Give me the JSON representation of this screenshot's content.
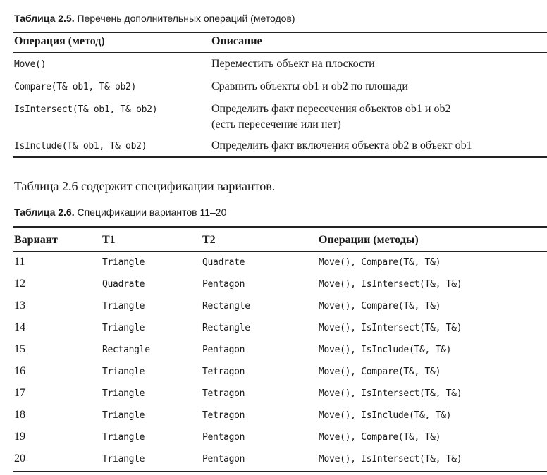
{
  "table1": {
    "caption_label": "Таблица 2.5.",
    "caption_text": " Перечень дополнительных операций (методов)",
    "headers": [
      "Операция (метод)",
      "Описание"
    ],
    "rows": [
      {
        "op": "Move()",
        "desc": "Переместить объект на плоскости"
      },
      {
        "op": "Compare(T& ob1, T& ob2)",
        "desc": "Сравнить объекты ob1 и ob2 по площади"
      },
      {
        "op": "IsIntersect(T& ob1, T& ob2)",
        "desc": "Определить факт пересечения объектов ob1 и ob2",
        "desc2": "(есть пересечение или нет)"
      },
      {
        "op": "IsInclude(T& ob1, T& ob2)",
        "desc": "Определить факт включения объекта ob2 в объект ob1"
      }
    ]
  },
  "paragraph": "Таблица 2.6 содержит спецификации вариантов.",
  "table2": {
    "caption_label": "Таблица 2.6.",
    "caption_text": " Спецификации вариантов 11–20",
    "headers": [
      "Вариант",
      "T1",
      "T2",
      "Операции (методы)"
    ],
    "rows": [
      [
        "11",
        "Triangle",
        "Quadrate",
        "Move(), Compare(T&, T&)"
      ],
      [
        "12",
        "Quadrate",
        "Pentagon",
        "Move(), IsIntersect(T&, T&)"
      ],
      [
        "13",
        "Triangle",
        "Rectangle",
        "Move(), Compare(T&, T&)"
      ],
      [
        "14",
        "Triangle",
        "Rectangle",
        "Move(), IsIntersect(T&, T&)"
      ],
      [
        "15",
        "Rectangle",
        "Pentagon",
        "Move(), IsInclude(T&, T&)"
      ],
      [
        "16",
        "Triangle",
        "Tetragon",
        "Move(), Compare(T&, T&)"
      ],
      [
        "17",
        "Triangle",
        "Tetragon",
        "Move(), IsIntersect(T&, T&)"
      ],
      [
        "18",
        "Triangle",
        "Tetragon",
        "Move(), IsInclude(T&, T&)"
      ],
      [
        "19",
        "Triangle",
        "Pentagon",
        "Move(), Compare(T&, T&)"
      ],
      [
        "20",
        "Triangle",
        "Pentagon",
        "Move(), IsIntersect(T&, T&)"
      ]
    ]
  }
}
